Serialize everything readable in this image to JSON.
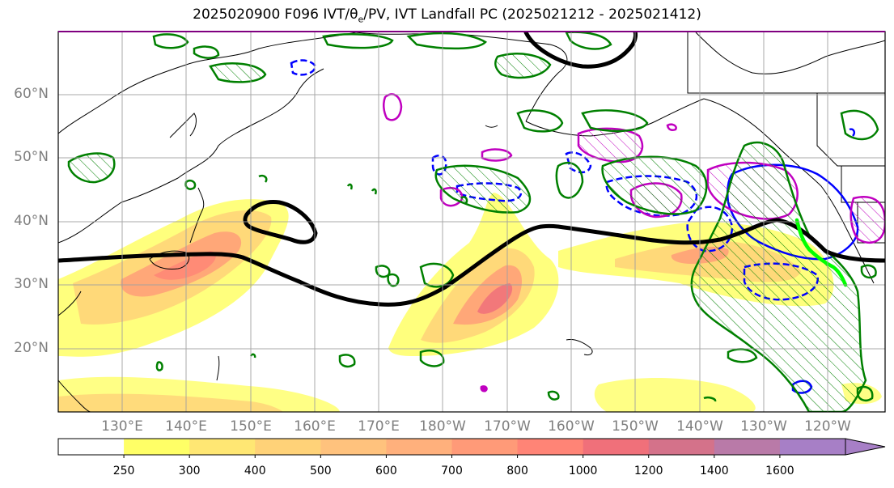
{
  "title": {
    "prefix": "2025020900 F096 IVT/",
    "theta_base": "θ",
    "theta_sub": "e",
    "suffix": "/PV, IVT Landfall PC (2025021212 - 2025021412)"
  },
  "map": {
    "lon_labels": [
      "130°E",
      "140°E",
      "150°E",
      "160°E",
      "170°E",
      "180°W",
      "170°W",
      "160°W",
      "150°W",
      "140°W",
      "130°W",
      "120°W"
    ],
    "lat_labels": [
      "60°N",
      "50°N",
      "40°N",
      "30°N",
      "20°N"
    ],
    "colors": {
      "ivt_black_contour": "#000000",
      "pv_green": "#008000",
      "theta_magenta": "#c000c0",
      "blue_contour": "#0000ff",
      "landfall_green": "#00ff00"
    }
  },
  "colorbar": {
    "levels": [
      250,
      300,
      400,
      500,
      600,
      700,
      800,
      1000,
      1200,
      1400,
      1600
    ],
    "tick_labels": [
      "250",
      "300",
      "400",
      "500",
      "600",
      "700",
      "800",
      "1000",
      "1200",
      "1400",
      "1600"
    ],
    "colors": [
      "#ffffff",
      "#ffff66",
      "#ffe773",
      "#ffd278",
      "#ffc27d",
      "#ffb07c",
      "#ff9a78",
      "#ff8476",
      "#f0707a",
      "#d4728a",
      "#b97aa8",
      "#a77fc6"
    ],
    "extend": "max"
  }
}
